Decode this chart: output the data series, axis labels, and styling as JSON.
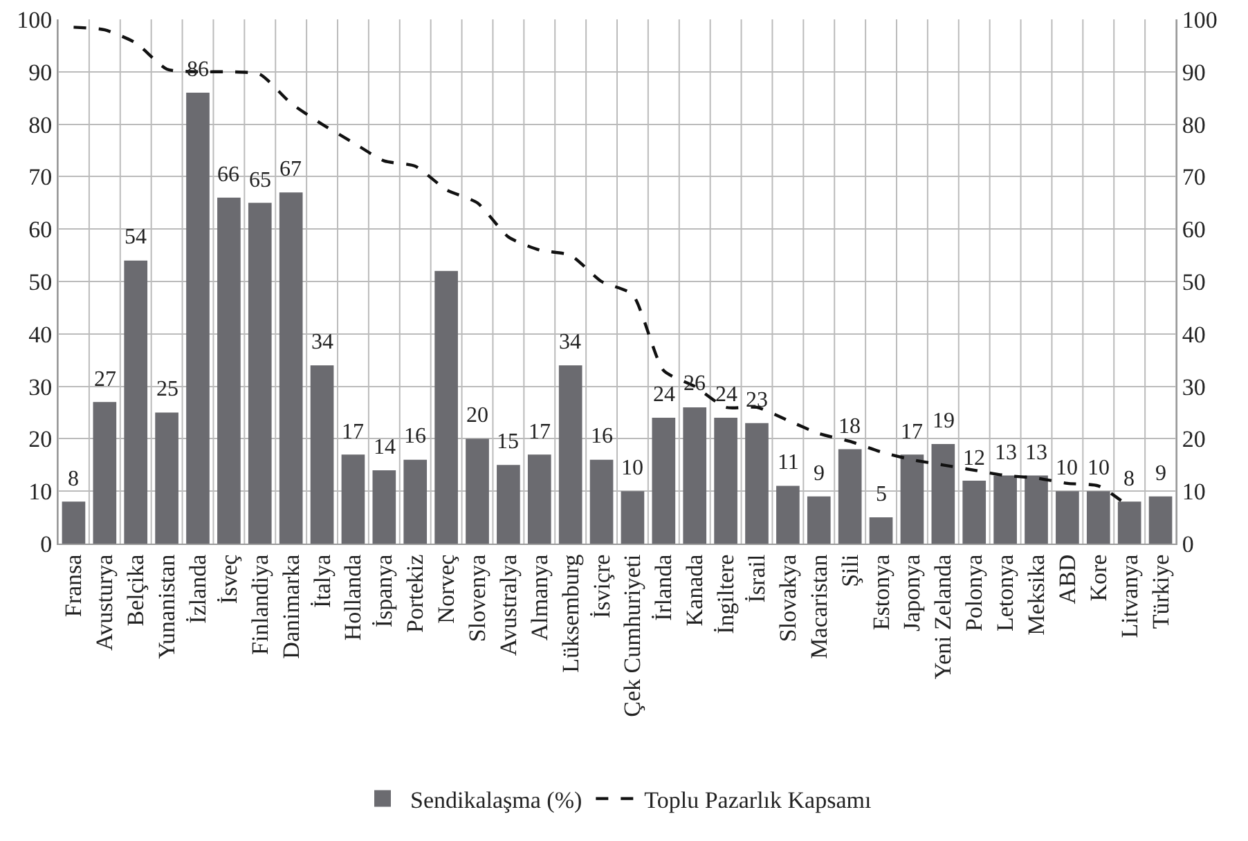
{
  "chart_data": {
    "type": "bar",
    "categories": [
      "Fransa",
      "Avusturya",
      "Belçika",
      "Yunanistan",
      "İzlanda",
      "İsveç",
      "Finlandiya",
      "Danimarka",
      "İtalya",
      "Hollanda",
      "İspanya",
      "Portekiz",
      "Norveç",
      "Slovenya",
      "Avustralya",
      "Almanya",
      "Lüksemburg",
      "İsviçre",
      "Çek Cumhuriyeti",
      "İrlanda",
      "Kanada",
      "İngiltere",
      "İsrail",
      "Slovakya",
      "Macaristan",
      "Şili",
      "Estonya",
      "Japonya",
      "Yeni Zelanda",
      "Polonya",
      "Letonya",
      "Meksika",
      "ABD",
      "Kore",
      "Litvanya",
      "Türkiye"
    ],
    "series": [
      {
        "name": "Sendikalaşma (%)",
        "color": "#6b6b70",
        "values": [
          8,
          27,
          54,
          25,
          86,
          66,
          65,
          67,
          34,
          17,
          14,
          16,
          52,
          20,
          15,
          17,
          34,
          16,
          10,
          24,
          26,
          24,
          23,
          11,
          9,
          18,
          5,
          17,
          19,
          12,
          13,
          13,
          10,
          10,
          8,
          9
        ],
        "value_labels": [
          "8",
          "27",
          "54",
          "25",
          "86",
          "66",
          "65",
          "67",
          "34",
          "17",
          "14",
          "16",
          null,
          "20",
          "15",
          "17",
          "34",
          "16",
          "10",
          "24",
          "26",
          "24",
          "23",
          "11",
          "9",
          "18",
          "5",
          "17",
          "19",
          "12",
          "13",
          "13",
          "10",
          "10",
          "8",
          "9"
        ]
      },
      {
        "name": "Toplu Pazarlık Kapsamı",
        "type": "line",
        "color": "#111111",
        "line_style": "dashed",
        "marker": "none",
        "values": [
          98.5,
          98,
          95.5,
          90.5,
          90,
          90,
          89.5,
          84,
          80,
          76.5,
          73,
          72,
          67.5,
          65,
          58.5,
          56,
          55,
          50,
          47.5,
          33,
          30,
          26,
          26,
          23.5,
          21,
          19.5,
          17.5,
          16,
          15,
          14,
          13,
          12.5,
          11.5,
          11,
          7,
          null
        ]
      }
    ],
    "ylim": [
      0,
      100
    ],
    "yticks": [
      0,
      10,
      20,
      30,
      40,
      50,
      60,
      70,
      80,
      90,
      100
    ],
    "y2lim": [
      0,
      100
    ],
    "y2ticks": [
      0,
      10,
      20,
      30,
      40,
      50,
      60,
      70,
      80,
      90,
      100
    ],
    "grid": true,
    "legend": "bottom"
  }
}
